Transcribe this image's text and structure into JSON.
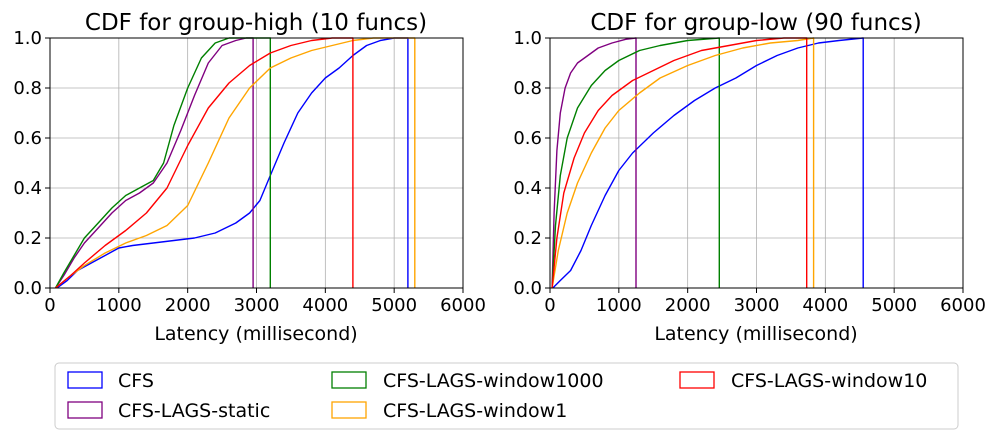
{
  "chart_data": [
    {
      "type": "line",
      "title": "CDF for group-high (10 funcs)",
      "xlabel": "Latency (millisecond)",
      "ylabel": "",
      "xlim": [
        0,
        6000
      ],
      "ylim": [
        0,
        1.0
      ],
      "xticks": [
        0,
        1000,
        2000,
        3000,
        4000,
        5000,
        6000
      ],
      "yticks": [
        0.0,
        0.2,
        0.4,
        0.6,
        0.8,
        1.0
      ],
      "xtick_labels": [
        "0",
        "1000",
        "2000",
        "3000",
        "4000",
        "5000",
        "6000"
      ],
      "ytick_labels": [
        "0.0",
        "0.2",
        "0.4",
        "0.6",
        "0.8",
        "1.0"
      ],
      "grid": true,
      "series": [
        {
          "name": "CFS",
          "color": "#0000ff",
          "x": [
            100,
            250,
            400,
            600,
            800,
            1000,
            1200,
            1500,
            1800,
            2100,
            2400,
            2700,
            2900,
            3050,
            3200,
            3400,
            3600,
            3800,
            4000,
            4200,
            4400,
            4600,
            4800,
            5000,
            5200
          ],
          "y": [
            0.0,
            0.03,
            0.07,
            0.1,
            0.13,
            0.16,
            0.17,
            0.18,
            0.19,
            0.2,
            0.22,
            0.26,
            0.3,
            0.35,
            0.45,
            0.58,
            0.7,
            0.78,
            0.84,
            0.88,
            0.93,
            0.97,
            0.99,
            1.0,
            1.0
          ]
        },
        {
          "name": "CFS-LAGS-static",
          "color": "#800080",
          "x": [
            80,
            200,
            350,
            500,
            700,
            900,
            1100,
            1300,
            1500,
            1700,
            1900,
            2100,
            2300,
            2500,
            2700,
            2850,
            2950
          ],
          "y": [
            0.0,
            0.05,
            0.12,
            0.18,
            0.24,
            0.3,
            0.35,
            0.38,
            0.42,
            0.5,
            0.63,
            0.77,
            0.9,
            0.97,
            0.99,
            1.0,
            1.0
          ]
        },
        {
          "name": "CFS-LAGS-window1000",
          "color": "#008000",
          "x": [
            80,
            200,
            350,
            500,
            700,
            900,
            1100,
            1300,
            1500,
            1650,
            1800,
            2000,
            2200,
            2400,
            2600,
            2800,
            3000,
            3200
          ],
          "y": [
            0.0,
            0.06,
            0.13,
            0.2,
            0.26,
            0.32,
            0.37,
            0.4,
            0.43,
            0.5,
            0.65,
            0.8,
            0.92,
            0.98,
            1.0,
            1.0,
            1.0,
            1.0
          ]
        },
        {
          "name": "CFS-LAGS-window1",
          "color": "#ffa500",
          "x": [
            80,
            300,
            500,
            800,
            1100,
            1400,
            1700,
            2000,
            2300,
            2600,
            2900,
            3200,
            3500,
            3800,
            4100,
            4400,
            4700,
            5000,
            5300
          ],
          "y": [
            0.0,
            0.05,
            0.09,
            0.14,
            0.18,
            0.21,
            0.25,
            0.33,
            0.5,
            0.68,
            0.8,
            0.88,
            0.92,
            0.95,
            0.97,
            0.99,
            1.0,
            1.0,
            1.0
          ]
        },
        {
          "name": "CFS-LAGS-window10",
          "color": "#ff0000",
          "x": [
            80,
            300,
            500,
            800,
            1100,
            1400,
            1700,
            2000,
            2300,
            2600,
            2900,
            3200,
            3500,
            3800,
            4100,
            4400
          ],
          "y": [
            0.0,
            0.05,
            0.1,
            0.17,
            0.23,
            0.3,
            0.4,
            0.57,
            0.72,
            0.82,
            0.89,
            0.94,
            0.97,
            0.99,
            1.0,
            1.0
          ]
        }
      ]
    },
    {
      "type": "line",
      "title": "CDF for group-low (90 funcs)",
      "xlabel": "Latency (millisecond)",
      "ylabel": "",
      "xlim": [
        0,
        6000
      ],
      "ylim": [
        0,
        1.0
      ],
      "xticks": [
        0,
        1000,
        2000,
        3000,
        4000,
        5000,
        6000
      ],
      "yticks": [
        0.0,
        0.2,
        0.4,
        0.6,
        0.8,
        1.0
      ],
      "xtick_labels": [
        "0",
        "1000",
        "2000",
        "3000",
        "4000",
        "5000",
        "6000"
      ],
      "ytick_labels": [
        "0.0",
        "0.2",
        "0.4",
        "0.6",
        "0.8",
        "1.0"
      ],
      "grid": true,
      "series": [
        {
          "name": "CFS",
          "color": "#0000ff",
          "x": [
            40,
            150,
            300,
            450,
            600,
            800,
            1000,
            1200,
            1500,
            1800,
            2100,
            2400,
            2700,
            3000,
            3300,
            3600,
            3900,
            4200,
            4550
          ],
          "y": [
            0.0,
            0.03,
            0.07,
            0.15,
            0.25,
            0.37,
            0.47,
            0.54,
            0.62,
            0.69,
            0.75,
            0.8,
            0.84,
            0.89,
            0.93,
            0.96,
            0.98,
            0.99,
            1.0
          ]
        },
        {
          "name": "CFS-LAGS-static",
          "color": "#800080",
          "x": [
            30,
            60,
            100,
            150,
            220,
            300,
            400,
            550,
            700,
            900,
            1100,
            1250
          ],
          "y": [
            0.0,
            0.3,
            0.55,
            0.7,
            0.8,
            0.86,
            0.9,
            0.93,
            0.96,
            0.98,
            0.995,
            1.0
          ]
        },
        {
          "name": "CFS-LAGS-window1000",
          "color": "#008000",
          "x": [
            30,
            80,
            150,
            250,
            400,
            600,
            800,
            1000,
            1300,
            1600,
            2000,
            2460
          ],
          "y": [
            0.0,
            0.25,
            0.45,
            0.6,
            0.72,
            0.81,
            0.87,
            0.91,
            0.95,
            0.97,
            0.99,
            1.0
          ]
        },
        {
          "name": "CFS-LAGS-window1",
          "color": "#ffa500",
          "x": [
            30,
            120,
            250,
            400,
            600,
            800,
            1000,
            1300,
            1600,
            2000,
            2400,
            2800,
            3200,
            3600,
            3830
          ],
          "y": [
            0.0,
            0.15,
            0.3,
            0.42,
            0.54,
            0.64,
            0.71,
            0.78,
            0.84,
            0.89,
            0.93,
            0.96,
            0.98,
            0.99,
            1.0
          ]
        },
        {
          "name": "CFS-LAGS-window10",
          "color": "#ff0000",
          "x": [
            30,
            100,
            200,
            350,
            500,
            700,
            900,
            1200,
            1500,
            1800,
            2200,
            2600,
            3000,
            3400,
            3730
          ],
          "y": [
            0.0,
            0.2,
            0.38,
            0.52,
            0.62,
            0.71,
            0.77,
            0.83,
            0.87,
            0.91,
            0.95,
            0.97,
            0.99,
            1.0,
            1.0
          ]
        }
      ]
    }
  ],
  "legend": {
    "placement": "bottom",
    "entries": [
      {
        "label": "CFS",
        "color": "#0000ff"
      },
      {
        "label": "CFS-LAGS-window1000",
        "color": "#008000"
      },
      {
        "label": "CFS-LAGS-window10",
        "color": "#ff0000"
      },
      {
        "label": "CFS-LAGS-static",
        "color": "#800080"
      },
      {
        "label": "CFS-LAGS-window1",
        "color": "#ffa500"
      }
    ]
  }
}
